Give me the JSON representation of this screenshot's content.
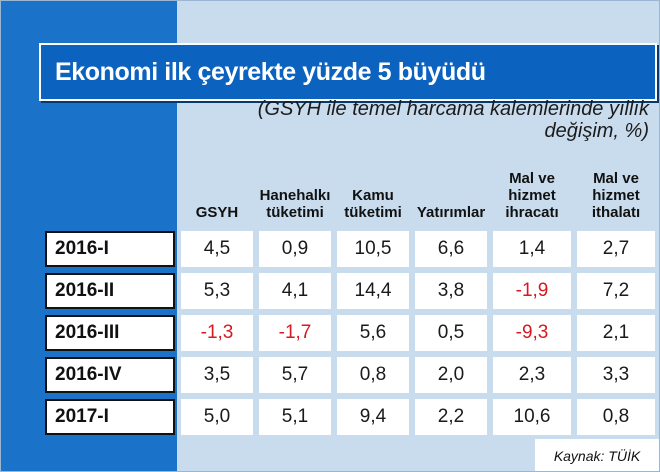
{
  "chart_data": {
    "type": "table",
    "title": "Ekonomi ilk çeyrekte yüzde 5 büyüdü",
    "subtitle": "(GSYH ile temel harcama kalemlerinde yıllık değişim, %)",
    "columns": [
      "GSYH",
      "Hanehalkı tüketimi",
      "Kamu tüketimi",
      "Yatırımlar",
      "Mal ve hizmet ihracatı",
      "Mal ve hizmet ithalatı"
    ],
    "rows": [
      {
        "label": "2016-I",
        "cells": [
          "4,5",
          "0,9",
          "10,5",
          "6,6",
          "1,4",
          "2,7"
        ],
        "values": [
          4.5,
          0.9,
          10.5,
          6.6,
          1.4,
          2.7
        ]
      },
      {
        "label": "2016-II",
        "cells": [
          "5,3",
          "4,1",
          "14,4",
          "3,8",
          "-1,9",
          "7,2"
        ],
        "values": [
          5.3,
          4.1,
          14.4,
          3.8,
          -1.9,
          7.2
        ]
      },
      {
        "label": "2016-III",
        "cells": [
          "-1,3",
          "-1,7",
          "5,6",
          "0,5",
          "-9,3",
          "2,1"
        ],
        "values": [
          -1.3,
          -1.7,
          5.6,
          0.5,
          -9.3,
          2.1
        ]
      },
      {
        "label": "2016-IV",
        "cells": [
          "3,5",
          "5,7",
          "0,8",
          "2,0",
          "2,3",
          "3,3"
        ],
        "values": [
          3.5,
          5.7,
          0.8,
          2.0,
          2.3,
          3.3
        ]
      },
      {
        "label": "2017-I",
        "cells": [
          "5,0",
          "5,1",
          "9,4",
          "2,2",
          "10,6",
          "0,8"
        ],
        "values": [
          5.0,
          5.1,
          9.4,
          2.2,
          10.6,
          0.8
        ]
      }
    ],
    "source": "Kaynak: TÜİK",
    "colors": {
      "panel_blue": "#1a73c9",
      "title_blue": "#0c62bf",
      "background": "#c9dcee",
      "cell_background": "#ffffff",
      "negative_value": "#d71920"
    }
  }
}
